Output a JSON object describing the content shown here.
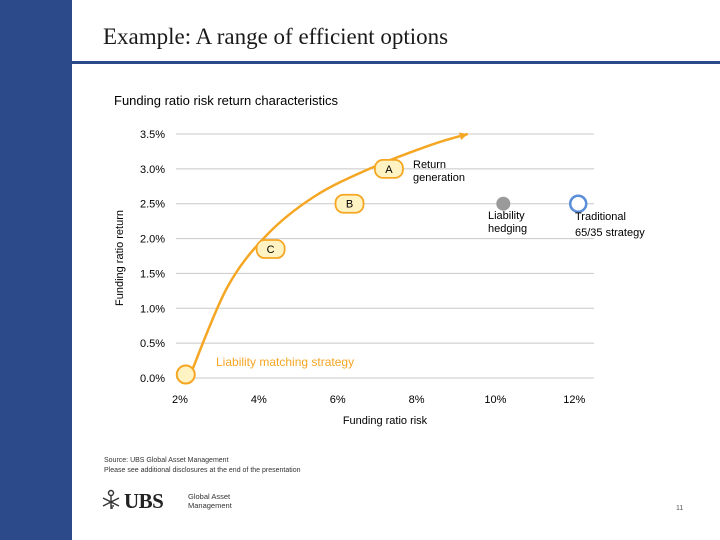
{
  "slide": {
    "title": "Example: A range of efficient options",
    "chart_heading": "Funding ratio risk return characteristics",
    "footnotes": [
      "Source: UBS Global Asset Management",
      "Please see additional disclosures at the end of the presentation"
    ],
    "logo": {
      "wordmark": "UBS",
      "line1": "Global Asset",
      "line2": "Management"
    },
    "page_number": "11"
  },
  "colors": {
    "sidebar": "#2c4a8a",
    "curve": "#f5a623",
    "point_fill": "#fff3c4",
    "point_stroke": "#f5a623",
    "liability_hedging": "#9a9a9a",
    "traditional": "#5b8dd9",
    "grid": "#c8c8c8"
  },
  "chart_data": {
    "type": "line",
    "title": "Funding ratio risk return characteristics",
    "xlabel": "Funding ratio risk",
    "ylabel": "Funding ratio return",
    "xlim": [
      1.9,
      12.5
    ],
    "ylim": [
      0.0,
      3.5
    ],
    "x_ticks": [
      2,
      4,
      6,
      8,
      10,
      12
    ],
    "x_tick_labels": [
      "2%",
      "4%",
      "6%",
      "8%",
      "10%",
      "12%"
    ],
    "y_ticks": [
      0.0,
      0.5,
      1.0,
      1.5,
      2.0,
      2.5,
      3.0,
      3.5
    ],
    "y_tick_labels": [
      "0.0%",
      "0.5%",
      "1.0%",
      "1.5%",
      "2.0%",
      "2.5%",
      "3.0%",
      "3.5%"
    ],
    "grid": true,
    "efficient_frontier": {
      "x": [
        2.3,
        3.2,
        4.2,
        5.4,
        6.8,
        8.4,
        9.3
      ],
      "y": [
        0.1,
        1.3,
        2.05,
        2.6,
        3.0,
        3.35,
        3.5
      ]
    },
    "labeled_points": [
      {
        "label": "A",
        "x": 7.3,
        "y": 3.0
      },
      {
        "label": "B",
        "x": 6.3,
        "y": 2.5
      },
      {
        "label": "C",
        "x": 4.3,
        "y": 1.85
      }
    ],
    "strategies": [
      {
        "label": "Liability matching strategy",
        "x": 2.3,
        "y": 0.05
      },
      {
        "label": "Liability hedging",
        "x": 10.2,
        "y": 2.5
      },
      {
        "label": "Traditional 65/35 strategy",
        "x": 12.1,
        "y": 2.5
      }
    ],
    "annotations": [
      {
        "text": "Return generation",
        "x": 9.5,
        "y": 3.0
      }
    ]
  }
}
